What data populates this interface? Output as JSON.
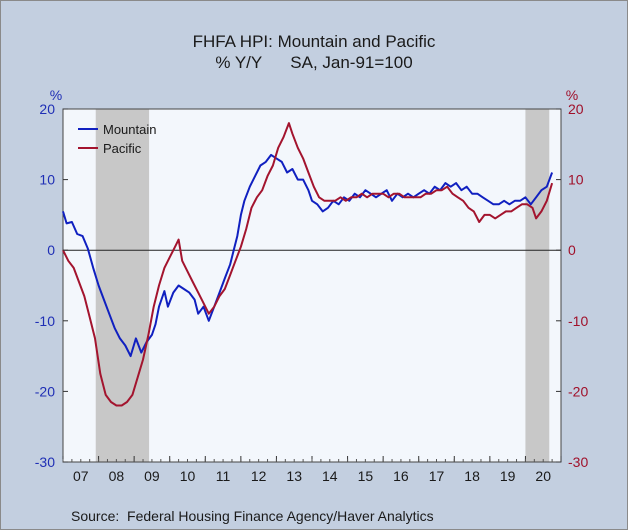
{
  "title": "FHFA HPI: Mountain and Pacific",
  "subtitle": "% Y/Y      SA, Jan-91=100",
  "source": "Source:  Federal Housing Finance Agency/Haver Analytics",
  "colors": {
    "background": "#c3cfe0",
    "plot_bg": "#f3f7fc",
    "recession": "#c8c8c8",
    "mountain": "#1020c0",
    "pacific": "#a3142e",
    "left_axis": "#1f2fb5",
    "right_axis": "#a0102a"
  },
  "chart_data": {
    "type": "line",
    "title": "FHFA HPI: Mountain and Pacific",
    "subtitle": "% Y/Y      SA, Jan-91=100",
    "ylabel_left": "%",
    "ylabel_right": "%",
    "ylim": [
      -30,
      20
    ],
    "yticks": [
      -30,
      -20,
      -10,
      0,
      10,
      20
    ],
    "xlim": [
      2007.0,
      2021.0
    ],
    "xtick_labels": [
      "07",
      "08",
      "09",
      "10",
      "11",
      "12",
      "13",
      "14",
      "15",
      "16",
      "17",
      "18",
      "19",
      "20"
    ],
    "legend": "top-left",
    "zero_line": true,
    "recession_shading": [
      [
        2007.92,
        2009.42
      ],
      [
        2020.0,
        2020.67
      ]
    ],
    "series": [
      {
        "name": "Mountain",
        "color": "#1020c0",
        "points": [
          [
            2007.0,
            5.5
          ],
          [
            2007.1,
            3.8
          ],
          [
            2007.25,
            4.0
          ],
          [
            2007.4,
            2.3
          ],
          [
            2007.55,
            2.0
          ],
          [
            2007.7,
            0.2
          ],
          [
            2007.85,
            -2.5
          ],
          [
            2008.0,
            -5.0
          ],
          [
            2008.15,
            -7.0
          ],
          [
            2008.3,
            -9.0
          ],
          [
            2008.45,
            -11.0
          ],
          [
            2008.6,
            -12.5
          ],
          [
            2008.75,
            -13.5
          ],
          [
            2008.9,
            -15.0
          ],
          [
            2009.05,
            -12.5
          ],
          [
            2009.2,
            -14.5
          ],
          [
            2009.35,
            -13.0
          ],
          [
            2009.5,
            -12.0
          ],
          [
            2009.6,
            -10.5
          ],
          [
            2009.7,
            -8.0
          ],
          [
            2009.85,
            -5.8
          ],
          [
            2009.95,
            -8.0
          ],
          [
            2010.1,
            -6.0
          ],
          [
            2010.25,
            -5.0
          ],
          [
            2010.4,
            -5.5
          ],
          [
            2010.55,
            -6.0
          ],
          [
            2010.7,
            -7.0
          ],
          [
            2010.8,
            -9.0
          ],
          [
            2010.95,
            -8.0
          ],
          [
            2011.1,
            -10.0
          ],
          [
            2011.25,
            -8.0
          ],
          [
            2011.4,
            -6.0
          ],
          [
            2011.55,
            -4.0
          ],
          [
            2011.7,
            -2.0
          ],
          [
            2011.8,
            0.0
          ],
          [
            2011.9,
            2.0
          ],
          [
            2012.0,
            5.0
          ],
          [
            2012.1,
            7.0
          ],
          [
            2012.25,
            9.0
          ],
          [
            2012.4,
            10.5
          ],
          [
            2012.55,
            12.0
          ],
          [
            2012.7,
            12.5
          ],
          [
            2012.85,
            13.5
          ],
          [
            2013.0,
            13.0
          ],
          [
            2013.15,
            12.5
          ],
          [
            2013.3,
            11.0
          ],
          [
            2013.45,
            11.5
          ],
          [
            2013.6,
            10.0
          ],
          [
            2013.75,
            10.0
          ],
          [
            2013.9,
            8.5
          ],
          [
            2014.0,
            7.0
          ],
          [
            2014.15,
            6.5
          ],
          [
            2014.3,
            5.5
          ],
          [
            2014.45,
            6.0
          ],
          [
            2014.6,
            7.0
          ],
          [
            2014.75,
            6.5
          ],
          [
            2014.9,
            7.5
          ],
          [
            2015.05,
            7.0
          ],
          [
            2015.2,
            8.0
          ],
          [
            2015.35,
            7.5
          ],
          [
            2015.5,
            8.5
          ],
          [
            2015.65,
            8.0
          ],
          [
            2015.8,
            7.5
          ],
          [
            2015.95,
            8.0
          ],
          [
            2016.1,
            8.5
          ],
          [
            2016.25,
            7.0
          ],
          [
            2016.4,
            8.0
          ],
          [
            2016.55,
            7.5
          ],
          [
            2016.7,
            8.0
          ],
          [
            2016.85,
            7.5
          ],
          [
            2017.0,
            8.0
          ],
          [
            2017.15,
            8.5
          ],
          [
            2017.3,
            8.0
          ],
          [
            2017.45,
            9.0
          ],
          [
            2017.6,
            8.5
          ],
          [
            2017.75,
            9.5
          ],
          [
            2017.9,
            9.0
          ],
          [
            2018.05,
            9.5
          ],
          [
            2018.2,
            8.5
          ],
          [
            2018.35,
            9.0
          ],
          [
            2018.5,
            8.0
          ],
          [
            2018.65,
            8.0
          ],
          [
            2018.8,
            7.5
          ],
          [
            2018.95,
            7.0
          ],
          [
            2019.1,
            6.5
          ],
          [
            2019.25,
            6.5
          ],
          [
            2019.4,
            7.0
          ],
          [
            2019.55,
            6.5
          ],
          [
            2019.7,
            7.0
          ],
          [
            2019.85,
            7.0
          ],
          [
            2020.0,
            7.5
          ],
          [
            2020.15,
            6.5
          ],
          [
            2020.3,
            7.5
          ],
          [
            2020.45,
            8.5
          ],
          [
            2020.6,
            9.0
          ],
          [
            2020.75,
            11.0
          ]
        ]
      },
      {
        "name": "Pacific",
        "color": "#a3142e",
        "points": [
          [
            2007.0,
            0.0
          ],
          [
            2007.15,
            -1.5
          ],
          [
            2007.3,
            -2.5
          ],
          [
            2007.45,
            -4.5
          ],
          [
            2007.6,
            -6.5
          ],
          [
            2007.75,
            -9.5
          ],
          [
            2007.9,
            -12.5
          ],
          [
            2008.05,
            -17.5
          ],
          [
            2008.2,
            -20.5
          ],
          [
            2008.35,
            -21.5
          ],
          [
            2008.5,
            -22.0
          ],
          [
            2008.65,
            -22.0
          ],
          [
            2008.8,
            -21.5
          ],
          [
            2008.95,
            -20.5
          ],
          [
            2009.1,
            -18.0
          ],
          [
            2009.25,
            -15.5
          ],
          [
            2009.4,
            -12.0
          ],
          [
            2009.55,
            -8.0
          ],
          [
            2009.7,
            -5.0
          ],
          [
            2009.85,
            -2.5
          ],
          [
            2010.0,
            -1.0
          ],
          [
            2010.15,
            0.5
          ],
          [
            2010.25,
            1.5
          ],
          [
            2010.35,
            -1.5
          ],
          [
            2010.5,
            -3.0
          ],
          [
            2010.65,
            -4.5
          ],
          [
            2010.8,
            -6.0
          ],
          [
            2010.95,
            -7.5
          ],
          [
            2011.1,
            -9.0
          ],
          [
            2011.25,
            -8.0
          ],
          [
            2011.4,
            -6.5
          ],
          [
            2011.55,
            -5.5
          ],
          [
            2011.7,
            -3.5
          ],
          [
            2011.85,
            -1.5
          ],
          [
            2012.0,
            0.5
          ],
          [
            2012.15,
            3.0
          ],
          [
            2012.3,
            6.0
          ],
          [
            2012.45,
            7.5
          ],
          [
            2012.6,
            8.5
          ],
          [
            2012.75,
            10.5
          ],
          [
            2012.9,
            12.0
          ],
          [
            2013.05,
            14.5
          ],
          [
            2013.2,
            16.0
          ],
          [
            2013.35,
            18.0
          ],
          [
            2013.45,
            16.5
          ],
          [
            2013.6,
            14.5
          ],
          [
            2013.75,
            13.0
          ],
          [
            2013.9,
            11.0
          ],
          [
            2014.05,
            9.0
          ],
          [
            2014.2,
            7.5
          ],
          [
            2014.35,
            7.0
          ],
          [
            2014.5,
            7.0
          ],
          [
            2014.65,
            7.0
          ],
          [
            2014.8,
            7.5
          ],
          [
            2014.95,
            7.0
          ],
          [
            2015.1,
            7.5
          ],
          [
            2015.25,
            7.5
          ],
          [
            2015.4,
            8.0
          ],
          [
            2015.55,
            7.5
          ],
          [
            2015.7,
            8.0
          ],
          [
            2015.85,
            8.0
          ],
          [
            2016.0,
            8.0
          ],
          [
            2016.15,
            7.5
          ],
          [
            2016.3,
            8.0
          ],
          [
            2016.45,
            8.0
          ],
          [
            2016.6,
            7.5
          ],
          [
            2016.75,
            7.5
          ],
          [
            2016.9,
            7.5
          ],
          [
            2017.05,
            7.5
          ],
          [
            2017.2,
            8.0
          ],
          [
            2017.35,
            8.0
          ],
          [
            2017.5,
            8.5
          ],
          [
            2017.65,
            8.5
          ],
          [
            2017.8,
            9.0
          ],
          [
            2017.95,
            8.0
          ],
          [
            2018.1,
            7.5
          ],
          [
            2018.25,
            7.0
          ],
          [
            2018.4,
            6.0
          ],
          [
            2018.55,
            5.5
          ],
          [
            2018.7,
            4.0
          ],
          [
            2018.85,
            5.0
          ],
          [
            2019.0,
            5.0
          ],
          [
            2019.15,
            4.5
          ],
          [
            2019.3,
            5.0
          ],
          [
            2019.45,
            5.5
          ],
          [
            2019.6,
            5.5
          ],
          [
            2019.75,
            6.0
          ],
          [
            2019.9,
            6.5
          ],
          [
            2020.05,
            6.5
          ],
          [
            2020.2,
            6.0
          ],
          [
            2020.3,
            4.5
          ],
          [
            2020.45,
            5.5
          ],
          [
            2020.6,
            7.0
          ],
          [
            2020.75,
            9.5
          ]
        ]
      }
    ]
  }
}
